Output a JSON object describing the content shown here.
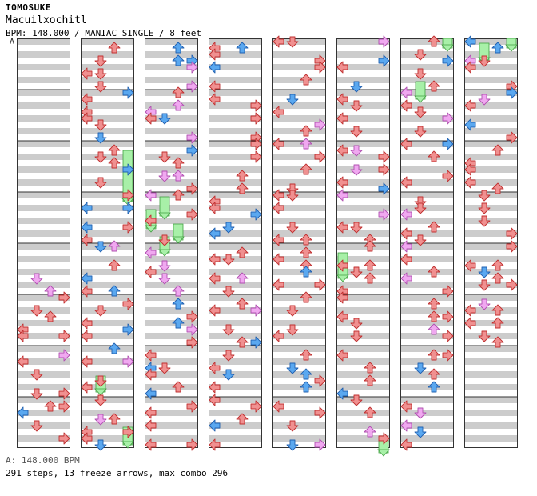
{
  "header": {
    "artist": "TOMOSUKE",
    "title": "Macuilxochitl",
    "info": "BPM: 148.000 / MANIAC SINGLE / 8 feet"
  },
  "bpm_marker": "A",
  "footer": {
    "bpm_line": "A: 148.000 BPM",
    "stats": "291 steps, 13 freeze arrows, max combo 296"
  },
  "colors": {
    "red": "#f09090",
    "blue": "#5aa8f0",
    "pink": "#f0a8f0",
    "freeze": "#a8f0a8",
    "stripe": "#cccccc",
    "border": "#333333"
  },
  "chart_data": {
    "type": "step-chart",
    "columns": 8,
    "measures_per_column": 8,
    "lanes": [
      "left",
      "down",
      "up",
      "right"
    ],
    "note_colors": [
      "red",
      "blue",
      "pink"
    ],
    "freeze_count": 13
  }
}
